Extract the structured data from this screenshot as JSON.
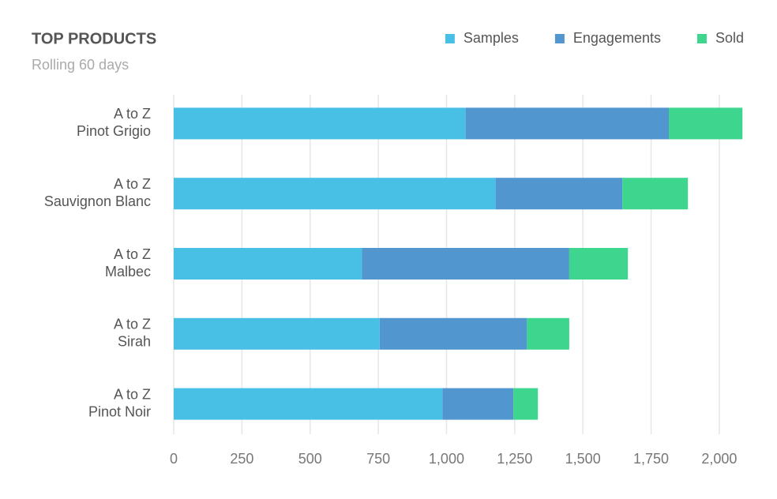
{
  "chart_data": {
    "type": "stacked-bar-horizontal",
    "title": "TOP PRODUCTS",
    "subtitle": "Rolling 60 days",
    "categories": [
      [
        "A to Z",
        "Pinot Grigio"
      ],
      [
        "A to Z",
        "Sauvignon Blanc"
      ],
      [
        "A to Z",
        "Malbec"
      ],
      [
        "A to Z",
        "Sirah"
      ],
      [
        "A to Z",
        "Pinot Noir"
      ]
    ],
    "series": [
      {
        "name": "Samples",
        "color": "#48c0e6",
        "values": [
          1070,
          1180,
          690,
          755,
          985
        ]
      },
      {
        "name": "Engagements",
        "color": "#5296cf",
        "values": [
          745,
          465,
          760,
          540,
          260
        ]
      },
      {
        "name": "Sold",
        "color": "#3ed68e",
        "values": [
          270,
          240,
          215,
          155,
          90
        ]
      }
    ],
    "xlim": [
      0,
      2090
    ],
    "xticks": [
      0,
      250,
      500,
      750,
      {
        "value": 1000,
        "label": "1,000"
      },
      {
        "value": 1250,
        "label": "1,250"
      },
      {
        "value": 1500,
        "label": "1,500"
      },
      {
        "value": 1750,
        "label": "1,750"
      },
      {
        "value": 2000,
        "label": "2,000"
      }
    ],
    "grid": true,
    "legend": "top-right"
  }
}
